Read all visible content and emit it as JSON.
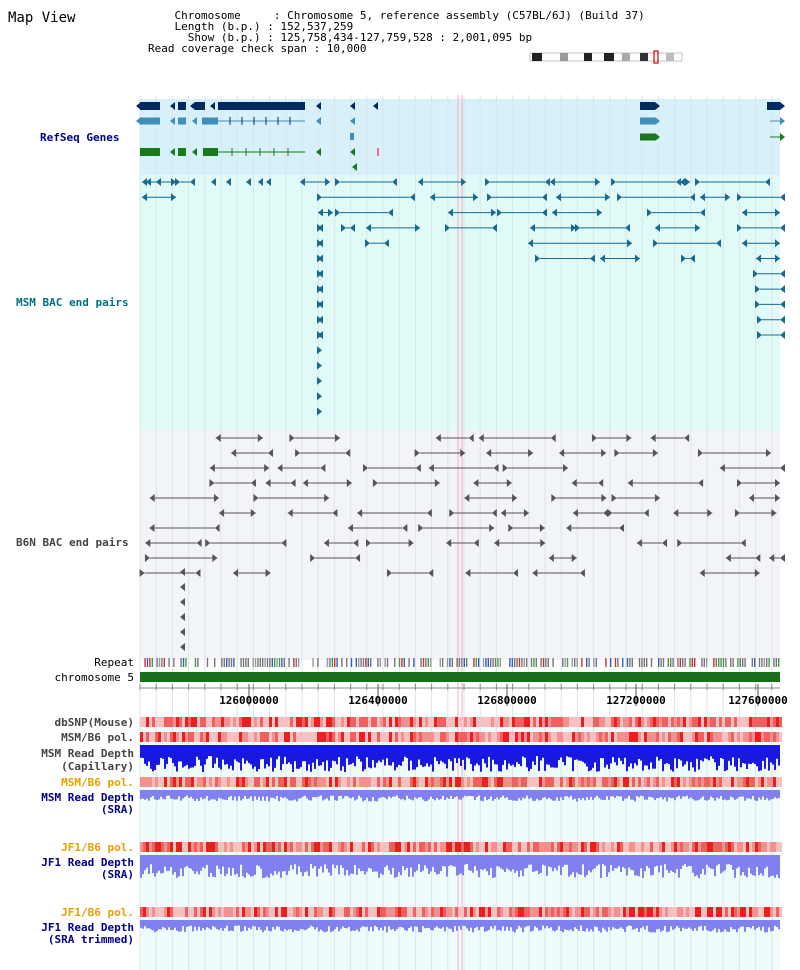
{
  "title": "Map View",
  "info": {
    "chromosome": "    Chromosome     : Chromosome 5, reference assembly (C57BL/6J) (Build 37)",
    "length": "    Length (b.p.) : 152,537,259",
    "show": "      Show (b.p.) : 125,758,434-127,759,528 : 2,001,095 bp",
    "read_coverage": "Read coverage check span : 10,000"
  },
  "tracks": {
    "refseq": "RefSeq Genes",
    "msm_bac": "MSM BAC end pairs",
    "b6n_bac": "B6N BAC end pairs",
    "repeat": "Repeat",
    "chromosome": "chromosome 5",
    "dbsnp": "dbSNP(Mouse)",
    "msm_b6_pol_1": "MSM/B6 pol.",
    "msm_read_depth_cap_1": "MSM Read Depth",
    "msm_read_depth_cap_2": "(Capillary)",
    "msm_b6_pol_2": "MSM/B6 pol.",
    "msm_read_depth_sra_1": "MSM Read Depth",
    "msm_read_depth_sra_2": "(SRA)",
    "jf1_b6_pol_1": "JF1/B6 pol.",
    "jf1_read_depth_sra_1": "JF1 Read Depth",
    "jf1_read_depth_sra_2": "(SRA)",
    "jf1_b6_pol_2": "JF1/B6 pol.",
    "jf1_read_depth_trim_1": "JF1 Read Depth",
    "jf1_read_depth_trim_2": "(SRA trimmed)"
  },
  "ruler": {
    "ticks": [
      "126000000",
      "126400000",
      "126800000",
      "127200000",
      "127600000"
    ]
  },
  "colors": {
    "refseq_bg": "#d8f0fa",
    "msm_bg": "#e0faf8",
    "b6n_bg": "#f2f4f8",
    "gene_navy": "#002a60",
    "gene_teal": "#3f8fb8",
    "gene_green": "#1a7a1a",
    "msm_feature": "#1a6a90",
    "b6n_feature": "#555555",
    "chromosome_bar": "#1a6e1a",
    "depth_capillary": "#1818e0",
    "depth_sra": "#8080f0",
    "pol_red": "#e83030"
  }
}
